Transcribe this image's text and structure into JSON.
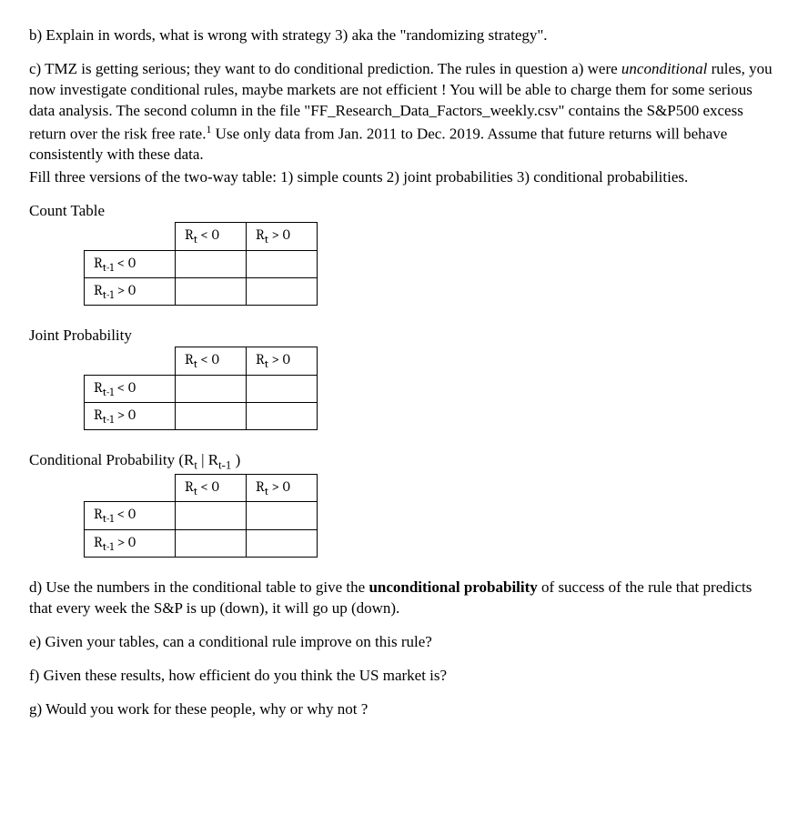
{
  "paragraphs": {
    "b": "b) Explain in words, what is wrong with strategy 3) aka the \"randomizing strategy\".",
    "c1": "c) TMZ is getting serious; they want to do conditional prediction. The rules in question a) were ",
    "c_unconditional": "unconditional",
    "c2": " rules, you now investigate conditional rules, maybe markets are not efficient ! You will be able to charge them for some serious data analysis. The second column in the file  \"FF_Research_Data_Factors_weekly.csv\" contains the S&P500 excess return over the risk free rate.",
    "c_footnote": "1",
    "c3": "  Use only data from Jan. 2011 to Dec. 2019. Assume that future returns will behave consistently with these data.",
    "c4": "Fill three versions of the two-way table: 1) simple counts 2) joint probabilities 3) conditional probabilities.",
    "d1": "d) Use the numbers in the conditional table to give the ",
    "d_bold": "unconditional probability",
    "d2": " of success of the rule that predicts that every week the S&P is up (down), it will go up (down).",
    "e": "e) Given your tables, can a conditional rule improve on this rule?",
    "f": "f) Given these results, how efficient do you think the US market is?",
    "g": "g) Would you work for these people, why or why not ?"
  },
  "tables": {
    "count_title": "Count Table",
    "joint_title": "Joint Probability",
    "cond_title_a": "Conditional Probability (R",
    "cond_title_b": " | R",
    "cond_title_c": " )",
    "col1_a": "R",
    "col1_b": " < 0",
    "col2_a": "R",
    "col2_b": " > 0",
    "row1_a": "R",
    "row1_b": " < 0",
    "row2_a": "R",
    "row2_b": " > 0",
    "sub_t": "t",
    "sub_t1": "t-1"
  }
}
